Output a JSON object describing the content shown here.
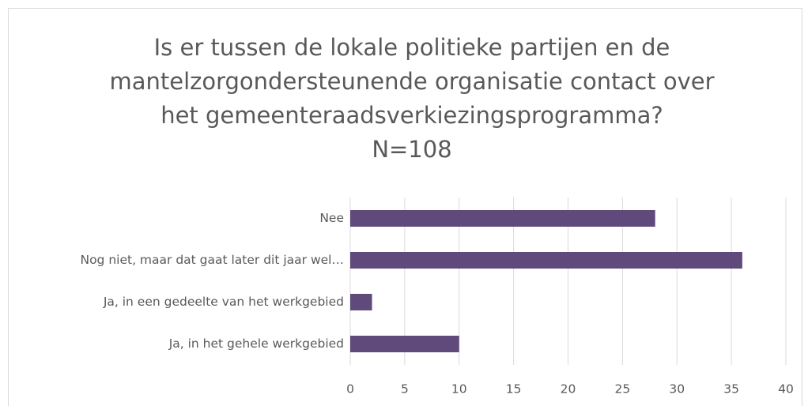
{
  "chart_data": {
    "type": "bar",
    "orientation": "horizontal",
    "title": [
      "Is er tussen de lokale politieke partijen en de",
      "mantelzorgondersteunende organisatie contact over",
      "het gemeenteraadsverkiezingsprogramma?",
      "N=108"
    ],
    "categories": [
      "Nee",
      "Nog niet, maar dat gaat later dit jaar wel…",
      "Ja, in een gedeelte van het werkgebied",
      "Ja, in het gehele werkgebied"
    ],
    "values": [
      28,
      36,
      2,
      10
    ],
    "color": "#604a7b",
    "xlim": [
      0,
      40
    ],
    "xticks": [
      0,
      5,
      10,
      15,
      20,
      25,
      30,
      35,
      40
    ],
    "grid": true
  }
}
